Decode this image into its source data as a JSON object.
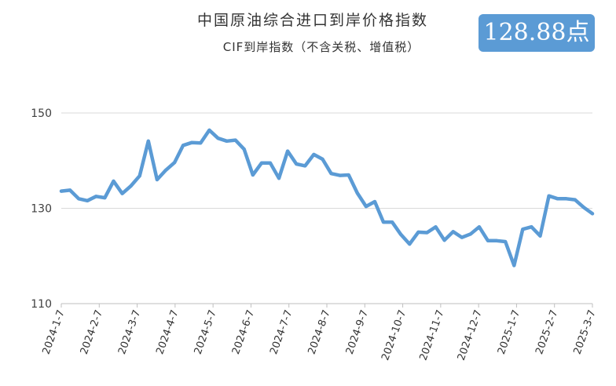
{
  "header": {
    "title": "中国原油综合进口到岸价格指数",
    "subtitle": "CIF到岸指数（不含关税、增值税）"
  },
  "badge": {
    "value_label": "128.88点"
  },
  "colors": {
    "line": "#5b9bd5",
    "badge_bg": "#5b9bd5",
    "grid": "#d9d9d9"
  },
  "chart_data": {
    "type": "line",
    "title": "中国原油综合进口到岸价格指数",
    "subtitle": "CIF到岸指数（不含关税、增值税）",
    "xlabel": "",
    "ylabel": "",
    "ylim": [
      110,
      150
    ],
    "yticks": [
      110,
      130,
      150
    ],
    "grid": true,
    "x_tick_labels": [
      "2024-1-7",
      "2024-2-7",
      "2024-3-7",
      "2024-4-7",
      "2024-5-7",
      "2024-6-7",
      "2024-7-7",
      "2024-8-7",
      "2024-9-7",
      "2024-10-7",
      "2024-11-7",
      "2024-12-7",
      "2025-1-7",
      "2025-2-7",
      "2025-3-7"
    ],
    "series": [
      {
        "values": [
          133.6,
          133.8,
          132.0,
          131.6,
          132.5,
          132.2,
          135.7,
          133.1,
          134.7,
          136.8,
          144.1,
          136.0,
          138.0,
          139.6,
          143.2,
          143.8,
          143.7,
          146.4,
          144.7,
          144.1,
          144.3,
          142.4,
          137.0,
          139.5,
          139.5,
          136.3,
          142.0,
          139.3,
          138.9,
          141.3,
          140.3,
          137.3,
          136.9,
          137.0,
          133.2,
          130.4,
          131.4,
          127.1,
          127.1,
          124.5,
          122.5,
          125.0,
          124.9,
          126.1,
          123.3,
          125.1,
          123.9,
          124.6,
          126.1,
          123.2,
          123.2,
          123.0,
          118.0,
          125.6,
          126.1,
          124.2,
          132.6,
          132.0,
          132.0,
          131.8,
          130.2,
          128.88
        ]
      }
    ]
  }
}
